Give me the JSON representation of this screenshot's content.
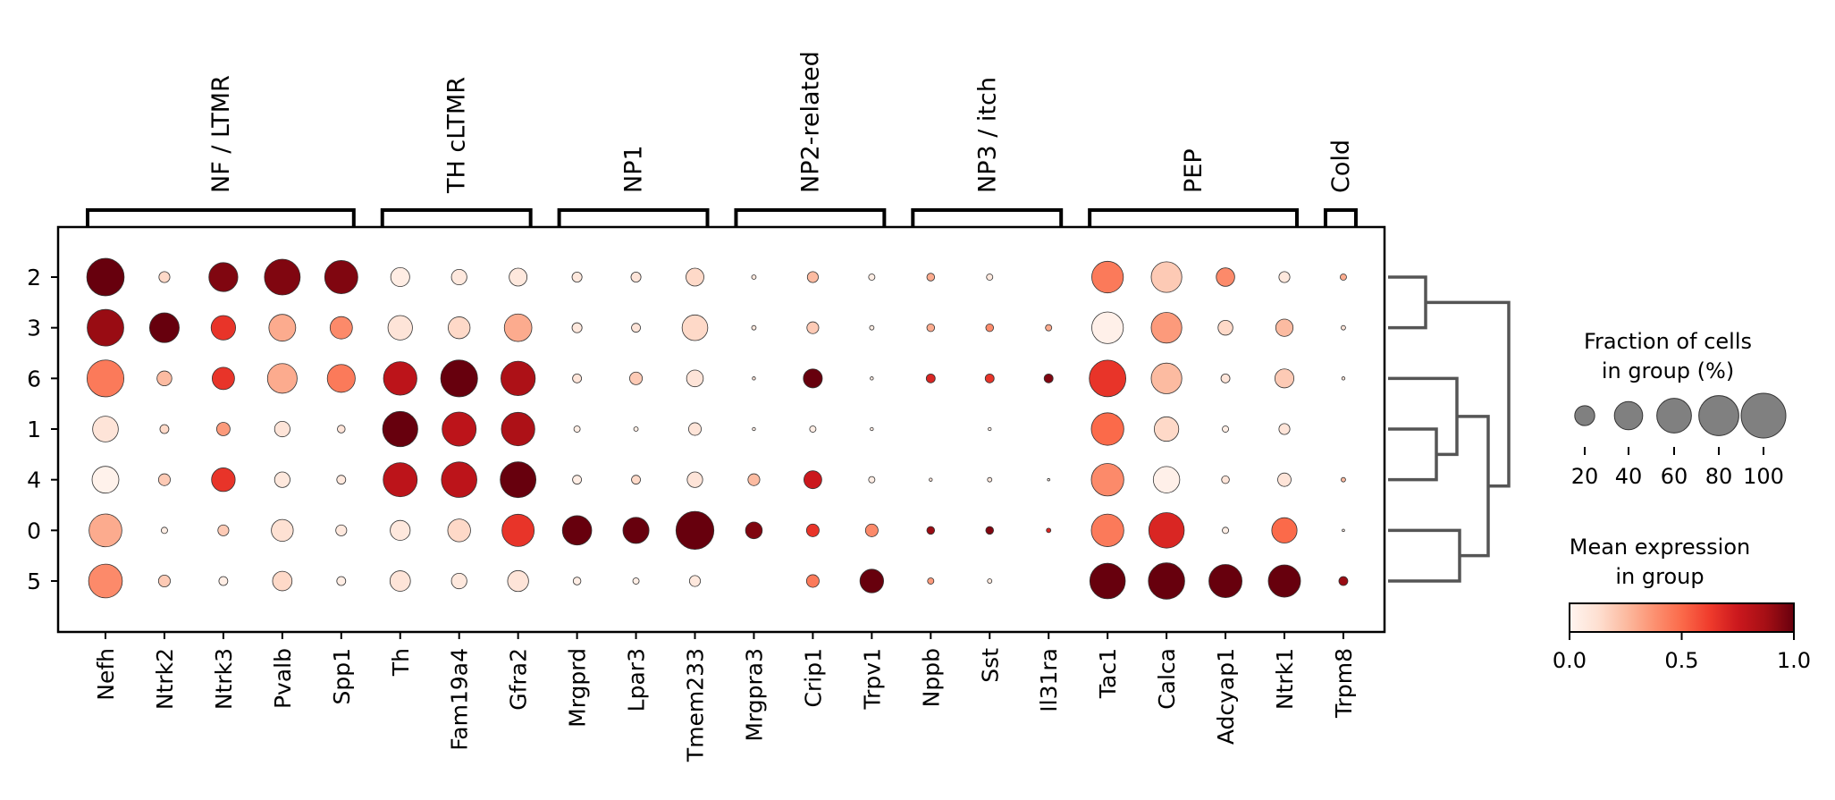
{
  "chart_data": {
    "type": "dotplot",
    "rows": [
      "2",
      "3",
      "6",
      "1",
      "4",
      "0",
      "5"
    ],
    "columns": [
      "Nefh",
      "Ntrk2",
      "Ntrk3",
      "Pvalb",
      "Spp1",
      "Th",
      "Fam19a4",
      "Gfra2",
      "Mrgprd",
      "Lpar3",
      "Tmem233",
      "Mrgpra3",
      "Crip1",
      "Trpv1",
      "Nppb",
      "Sst",
      "Il31ra",
      "Tac1",
      "Calca",
      "Adcyap1",
      "Ntrk1",
      "Trpm8"
    ],
    "gene_groups": [
      {
        "label": "NF / LTMR",
        "start": 0,
        "end": 4
      },
      {
        "label": "TH cLTMR",
        "start": 5,
        "end": 7
      },
      {
        "label": "NP1",
        "start": 8,
        "end": 10
      },
      {
        "label": "NP2-related",
        "start": 11,
        "end": 13
      },
      {
        "label": "NP3 / itch",
        "start": 14,
        "end": 16
      },
      {
        "label": "PEP",
        "start": 17,
        "end": 20
      },
      {
        "label": "Cold",
        "start": 21,
        "end": 21
      }
    ],
    "fraction_percent": [
      [
        70,
        6,
        42,
        64,
        55,
        18,
        12,
        16,
        5,
        5,
        16,
        1,
        6,
        2,
        3,
        2,
        0,
        50,
        47,
        17,
        6,
        2
      ],
      [
        67,
        44,
        30,
        36,
        25,
        30,
        24,
        38,
        5,
        4,
        33,
        1,
        7,
        1,
        3,
        3,
        2,
        50,
        47,
        11,
        15,
        1
      ],
      [
        68,
        11,
        25,
        44,
        39,
        56,
        68,
        59,
        4,
        8,
        14,
        0.5,
        18,
        0.5,
        4,
        4,
        4,
        67,
        47,
        4,
        18,
        0.5
      ],
      [
        33,
        4,
        9,
        12,
        3,
        62,
        58,
        56,
        2,
        1,
        8,
        0.5,
        2,
        0.5,
        0,
        0.5,
        0,
        53,
        30,
        2,
        6,
        0
      ],
      [
        36,
        7,
        28,
        12,
        4,
        58,
        63,
        64,
        4,
        4,
        12,
        7,
        16,
        2,
        0.5,
        1,
        0.3,
        53,
        35,
        3,
        9,
        1
      ],
      [
        54,
        2,
        6,
        24,
        6,
        20,
        26,
        52,
        43,
        34,
        72,
        14,
        8,
        8,
        3,
        3,
        1,
        53,
        63,
        2,
        32,
        0.3
      ],
      [
        57,
        7,
        4,
        19,
        4,
        21,
        12,
        22,
        3,
        2,
        6,
        0,
        8,
        28,
        2,
        1,
        0,
        63,
        66,
        55,
        52,
        4
      ]
    ],
    "mean_expression": [
      [
        1.0,
        0.15,
        0.95,
        0.95,
        0.95,
        0.05,
        0.08,
        0.08,
        0.08,
        0.1,
        0.15,
        0.08,
        0.25,
        0.05,
        0.3,
        0.08,
        0,
        0.45,
        0.2,
        0.4,
        0.08,
        0.3
      ],
      [
        0.9,
        1.0,
        0.65,
        0.3,
        0.4,
        0.1,
        0.15,
        0.3,
        0.08,
        0.1,
        0.15,
        0.08,
        0.2,
        0.05,
        0.3,
        0.4,
        0.3,
        0.03,
        0.35,
        0.15,
        0.25,
        0.1
      ],
      [
        0.45,
        0.25,
        0.65,
        0.3,
        0.45,
        0.8,
        1.0,
        0.85,
        0.1,
        0.2,
        0.1,
        0.1,
        1.0,
        0.05,
        0.7,
        0.65,
        0.95,
        0.65,
        0.25,
        0.1,
        0.2,
        0.1
      ],
      [
        0.1,
        0.15,
        0.35,
        0.1,
        0.1,
        1.0,
        0.8,
        0.85,
        0.05,
        0.05,
        0.1,
        0.05,
        0.05,
        0.05,
        0,
        0.05,
        0,
        0.5,
        0.15,
        0.05,
        0.1,
        0
      ],
      [
        0.02,
        0.2,
        0.65,
        0.08,
        0.08,
        0.8,
        0.8,
        1.0,
        0.05,
        0.15,
        0.1,
        0.25,
        0.75,
        0.05,
        0.1,
        0.08,
        0.05,
        0.4,
        0.03,
        0.1,
        0.1,
        0.25
      ],
      [
        0.3,
        0.05,
        0.2,
        0.12,
        0.08,
        0.08,
        0.15,
        0.65,
        1.0,
        1.0,
        1.0,
        0.95,
        0.65,
        0.4,
        0.9,
        0.95,
        0.7,
        0.45,
        0.7,
        0.05,
        0.5,
        0.05
      ],
      [
        0.4,
        0.2,
        0.05,
        0.15,
        0.05,
        0.1,
        0.08,
        0.1,
        0.05,
        0.05,
        0.08,
        0,
        0.45,
        1.0,
        0.35,
        0.08,
        0,
        1.0,
        1.0,
        1.0,
        1.0,
        0.9
      ]
    ],
    "dendrogram": {
      "leaf_order": [
        "2",
        "3",
        "6",
        "1",
        "4",
        "0",
        "5"
      ],
      "merges": [
        [
          "1",
          "4"
        ],
        [
          "6",
          "1+4"
        ],
        [
          "2",
          "3"
        ],
        [
          "0",
          "5"
        ],
        [
          "6+1+4",
          "0+5"
        ],
        [
          "2+3",
          "6+1+4+0+5"
        ]
      ]
    },
    "legend_size": {
      "title": "Fraction of cells\nin group (%)",
      "values": [
        20,
        40,
        60,
        80,
        100
      ]
    },
    "legend_color": {
      "title": "Mean expression\nin group",
      "ticks": [
        "0.0",
        "0.5",
        "1.0"
      ],
      "colormap": "Reds",
      "range": [
        0,
        1
      ]
    },
    "colors": {
      "dot_edge": "#333333",
      "frame": "#000000",
      "dendrogram": "#555555",
      "size_legend_dot": "#808080"
    }
  }
}
